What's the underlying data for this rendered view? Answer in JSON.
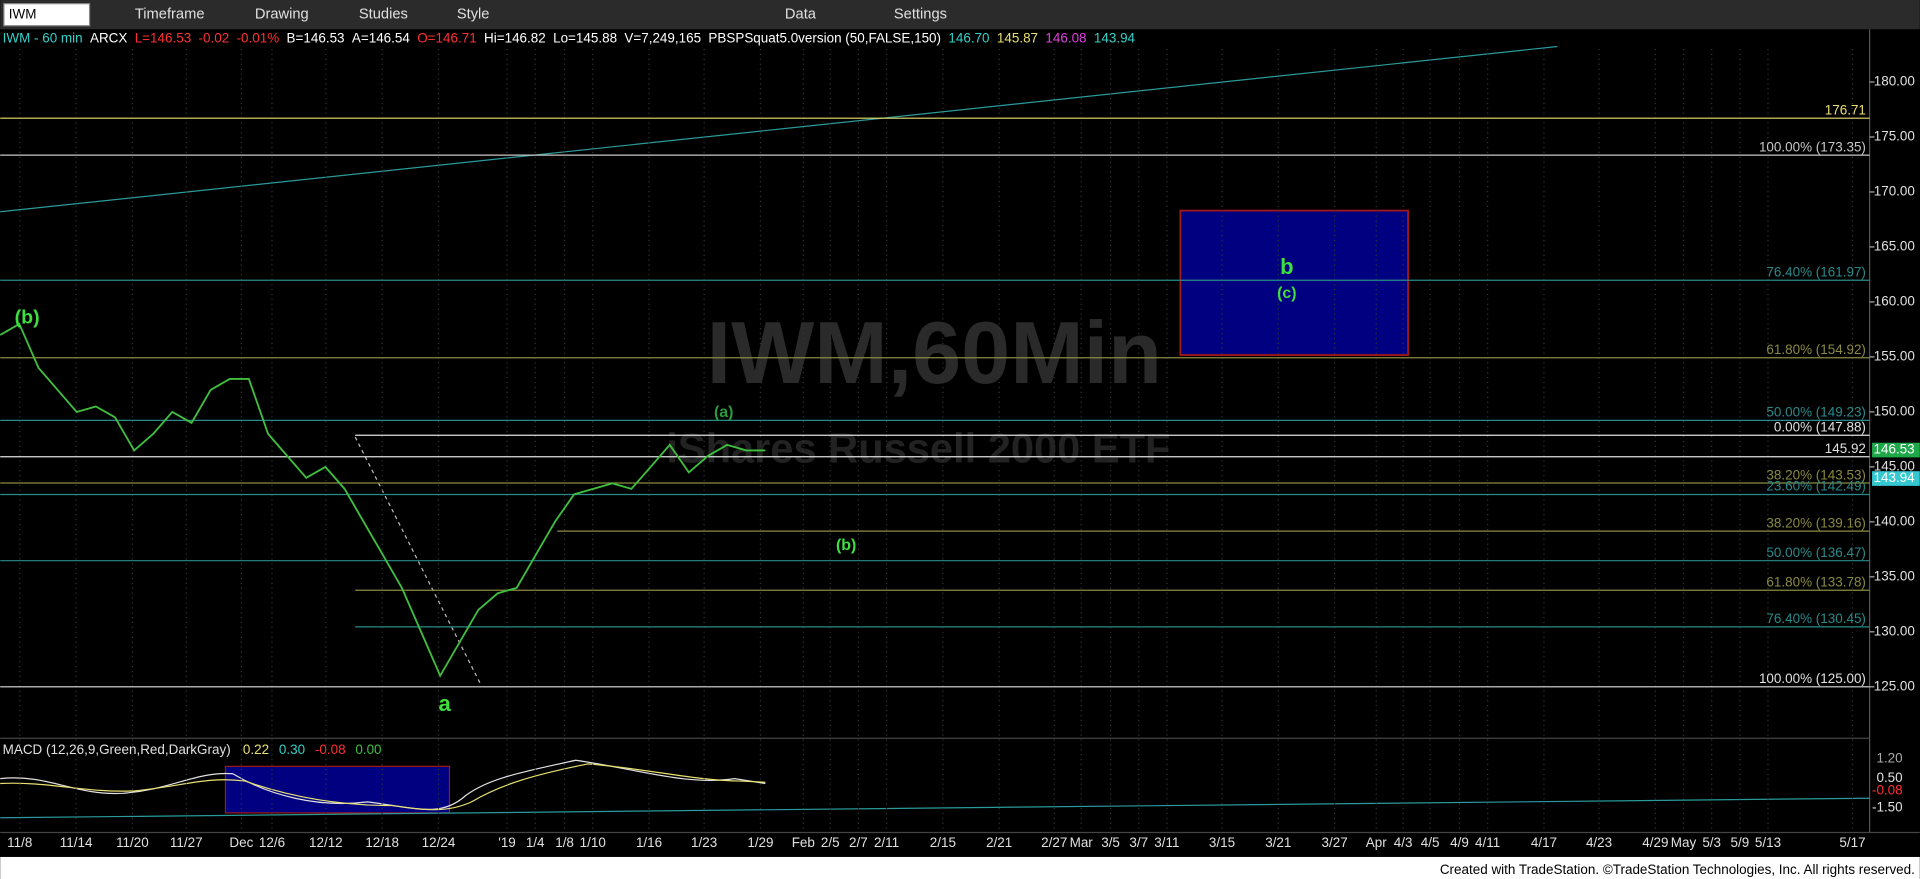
{
  "toolbar": {
    "symbol": "IWM",
    "buttons": [
      "Timeframe",
      "Drawing",
      "Studies",
      "Style",
      "Data",
      "Settings"
    ]
  },
  "info_bar": {
    "items": [
      {
        "text": "IWM - 60 min",
        "color": "#35d0c8"
      },
      {
        "text": "ARCX",
        "color": "#ffffff"
      },
      {
        "text": "L=146.53",
        "color": "#ff3030"
      },
      {
        "text": "-0.02",
        "color": "#ff3030"
      },
      {
        "text": "-0.01%",
        "color": "#ff3030"
      },
      {
        "text": "B=146.53",
        "color": "#ffffff"
      },
      {
        "text": "A=146.54",
        "color": "#ffffff"
      },
      {
        "text": "O=146.71",
        "color": "#ff3030"
      },
      {
        "text": "Hi=146.82",
        "color": "#ffffff"
      },
      {
        "text": "Lo=145.88",
        "color": "#ffffff"
      },
      {
        "text": "V=7,249,165",
        "color": "#ffffff"
      },
      {
        "text": "PBSPSquat5.0version (50,FALSE,150)",
        "color": "#ffffff"
      },
      {
        "text": "146.70",
        "color": "#35d0c8"
      },
      {
        "text": "145.87",
        "color": "#e8e070"
      },
      {
        "text": "146.08",
        "color": "#e040e0"
      },
      {
        "text": "143.94",
        "color": "#35d0c8"
      }
    ]
  },
  "watermark": {
    "title": "IWM,60Min",
    "subtitle": "iShares Russell 2000 ETF"
  },
  "chart": {
    "ylim": [
      120.66,
      183.56
    ],
    "yticks": [
      {
        "value": 125,
        "label": "125.00"
      },
      {
        "value": 130,
        "label": "130.00"
      },
      {
        "value": 135,
        "label": "135.00"
      },
      {
        "value": 140,
        "label": "140.00"
      },
      {
        "value": 145,
        "label": "145.00"
      },
      {
        "value": 150,
        "label": "150.00"
      },
      {
        "value": 155,
        "label": "155.00"
      },
      {
        "value": 160,
        "label": "160.00"
      },
      {
        "value": 165,
        "label": "165.00"
      },
      {
        "value": 170,
        "label": "170.00"
      },
      {
        "value": 175,
        "label": "175.00"
      },
      {
        "value": 180,
        "label": "180.00"
      }
    ],
    "price_color": "#3fbf3f",
    "price": [
      157,
      158,
      154,
      152,
      150,
      150.5,
      149.5,
      146.5,
      148,
      150,
      149,
      152,
      153,
      153,
      148,
      146,
      144,
      145,
      143,
      140,
      137,
      134,
      130,
      126,
      129,
      132,
      133.5,
      134,
      137,
      140,
      142.5,
      143,
      143.5,
      143,
      145,
      147,
      144.5,
      146,
      147,
      146.5,
      146.5
    ],
    "levels": [
      {
        "label": "176.71",
        "value": 176.71,
        "color": "#e8e070"
      },
      {
        "label": "100.00% (173.35)",
        "value": 173.35,
        "color": "#c8c8c8"
      },
      {
        "label": "76.40% (161.97)",
        "value": 161.97,
        "color": "#2a8a8a"
      },
      {
        "label": "61.80% (154.92)",
        "value": 154.92,
        "color": "#8a8a40"
      },
      {
        "label": "50.00% (149.23)",
        "value": 149.23,
        "color": "#2a8a8a"
      },
      {
        "label": "0.00% (147.88)",
        "value": 147.88,
        "color": "#e0e0e0"
      },
      {
        "label": "145.92",
        "value": 145.92,
        "color": "#e0e0e0"
      },
      {
        "label": "38.20% (143.53)",
        "value": 143.53,
        "color": "#8a8a40"
      },
      {
        "label": "23.60% (142.49)",
        "value": 142.49,
        "color": "#2a8a8a"
      },
      {
        "label": "38.20% (139.16)",
        "value": 139.16,
        "color": "#8a8a40"
      },
      {
        "label": "50.00% (136.47)",
        "value": 136.47,
        "color": "#2a8a8a"
      },
      {
        "label": "61.80% (133.78)",
        "value": 133.78,
        "color": "#8a8a40"
      },
      {
        "label": "76.40% (130.45)",
        "value": 130.45,
        "color": "#2a8a8a"
      },
      {
        "label": "100.00% (125.00)",
        "value": 125,
        "color": "#e0e0e0"
      }
    ],
    "markers": [
      {
        "label": "146.53",
        "value": 146.53,
        "color": "#1fa84a"
      },
      {
        "label": "143.94",
        "value": 143.94,
        "color": "#35c8d0"
      }
    ],
    "annotations": [
      "(b)",
      "a",
      "(a)",
      "(b)",
      "b",
      "(c)"
    ],
    "dates": [
      "11/8",
      "11/14",
      "11/20",
      "11/27",
      "Dec",
      "12/6",
      "12/12",
      "12/18",
      "12/24",
      "'19",
      "1/4",
      "1/8",
      "1/10",
      "1/16",
      "1/23",
      "1/29",
      "Feb",
      "2/5",
      "2/7",
      "2/11",
      "2/15",
      "2/21",
      "2/27",
      "Mar",
      "3/5",
      "3/7",
      "3/11",
      "3/15",
      "3/21",
      "3/27",
      "Apr",
      "4/3",
      "4/5",
      "4/9",
      "4/11",
      "4/17",
      "4/23",
      "4/29",
      "May",
      "5/3",
      "5/9",
      "5/13",
      "5/17"
    ]
  },
  "macd": {
    "label": "MACD (12,26,9,Green,Red,DarkGray)",
    "values": [
      {
        "text": "0.22",
        "color": "#e8e070"
      },
      {
        "text": "0.30",
        "color": "#35d0c8"
      },
      {
        "text": "-0.08",
        "color": "#ff3030"
      },
      {
        "text": "0.00",
        "color": "#3fbf3f"
      }
    ],
    "axis": [
      "1.20",
      "0.50",
      "-0.08",
      "-1.50"
    ]
  },
  "footer": "Created with TradeStation. ©TradeStation Technologies, Inc. All rights reserved."
}
